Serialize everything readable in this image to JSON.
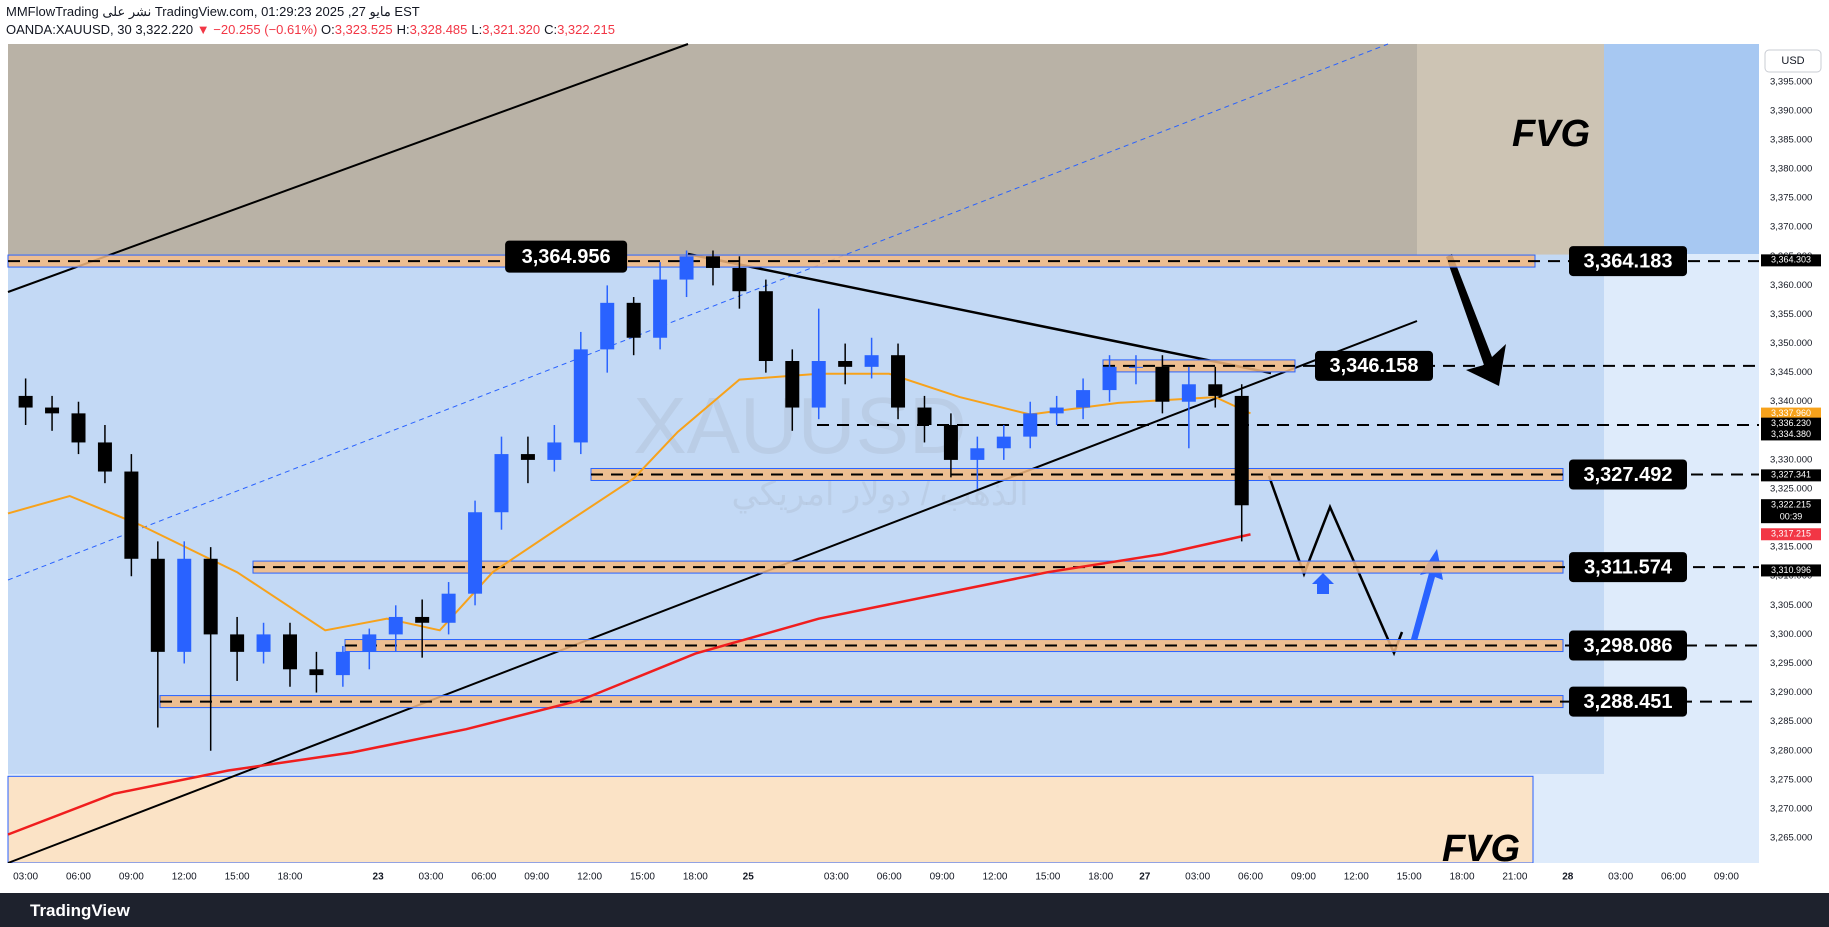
{
  "header": {
    "line1": "MMFlowTrading نشر على TradingView.com, مايو 27, 2025 01:29:23 EST",
    "symbol": "OANDA:XAUUSD, 30",
    "price": "3,322.220",
    "change": "▼ −20.255 (−0.61%)",
    "ohlc": [
      {
        "label": "O:",
        "value": "3,323.525"
      },
      {
        "label": "H:",
        "value": "3,328.485"
      },
      {
        "label": "L:",
        "value": "3,321.320"
      },
      {
        "label": "C:",
        "value": "3,322.215"
      }
    ]
  },
  "footer": {
    "brand": "TradingView"
  },
  "chart_data": {
    "type": "candlestick",
    "currency": "USD",
    "watermark": "XAUUSD",
    "watermark_sub": "الذهب / دولار امريكي",
    "countdown": "00:39",
    "up_color": "#2962ff",
    "down_color": "#000000",
    "xlim": [
      -2,
      196.7
    ],
    "ylim": [
      3260.7,
      3401.5
    ],
    "xticks": [
      {
        "value": 0,
        "label": "03:00"
      },
      {
        "value": 6,
        "label": "06:00"
      },
      {
        "value": 12,
        "label": "09:00"
      },
      {
        "value": 18,
        "label": "12:00"
      },
      {
        "value": 24,
        "label": "15:00"
      },
      {
        "value": 30,
        "label": "18:00"
      },
      {
        "value": 40,
        "label": "23"
      },
      {
        "value": 46,
        "label": "03:00"
      },
      {
        "value": 52,
        "label": "06:00"
      },
      {
        "value": 58,
        "label": "09:00"
      },
      {
        "value": 64,
        "label": "12:00"
      },
      {
        "value": 70,
        "label": "15:00"
      },
      {
        "value": 76,
        "label": "18:00"
      },
      {
        "value": 82,
        "label": "25"
      },
      {
        "value": 92,
        "label": "03:00"
      },
      {
        "value": 98,
        "label": "06:00"
      },
      {
        "value": 104,
        "label": "09:00"
      },
      {
        "value": 110,
        "label": "12:00"
      },
      {
        "value": 116,
        "label": "15:00"
      },
      {
        "value": 122,
        "label": "18:00"
      },
      {
        "value": 127,
        "label": "27"
      },
      {
        "value": 133,
        "label": "03:00"
      },
      {
        "value": 139,
        "label": "06:00"
      },
      {
        "value": 145,
        "label": "09:00"
      },
      {
        "value": 151,
        "label": "12:00"
      },
      {
        "value": 157,
        "label": "15:00"
      },
      {
        "value": 163,
        "label": "18:00"
      },
      {
        "value": 169,
        "label": "21:00"
      },
      {
        "value": 175,
        "label": "28"
      },
      {
        "value": 181,
        "label": "03:00"
      },
      {
        "value": 187,
        "label": "06:00"
      },
      {
        "value": 193,
        "label": "09:00"
      }
    ],
    "yticks": [
      {
        "value": 3265,
        "label": "3,265.000"
      },
      {
        "value": 3270,
        "label": "3,270.000"
      },
      {
        "value": 3275,
        "label": "3,275.000"
      },
      {
        "value": 3280,
        "label": "3,280.000"
      },
      {
        "value": 3285,
        "label": "3,285.000"
      },
      {
        "value": 3290,
        "label": "3,290.000"
      },
      {
        "value": 3295,
        "label": "3,295.000"
      },
      {
        "value": 3300,
        "label": "3,300.000"
      },
      {
        "value": 3305,
        "label": "3,305.000"
      },
      {
        "value": 3310,
        "label": "3,310.000"
      },
      {
        "value": 3315,
        "label": "3,315.000"
      },
      {
        "value": 3320,
        "label": "3,320.000"
      },
      {
        "value": 3325,
        "label": "3,325.000"
      },
      {
        "value": 3330,
        "label": "3,330.000"
      },
      {
        "value": 3335,
        "label": "3,335.000"
      },
      {
        "value": 3340,
        "label": "3,340.000"
      },
      {
        "value": 3345,
        "label": "3,345.000"
      },
      {
        "value": 3350,
        "label": "3,350.000"
      },
      {
        "value": 3355,
        "label": "3,355.000"
      },
      {
        "value": 3360,
        "label": "3,360.000"
      },
      {
        "value": 3365,
        "label": "3,365.000"
      },
      {
        "value": 3370,
        "label": "3,370.000"
      },
      {
        "value": 3375,
        "label": "3,375.000"
      },
      {
        "value": 3380,
        "label": "3,380.000"
      },
      {
        "value": 3385,
        "label": "3,385.000"
      },
      {
        "value": 3390,
        "label": "3,390.000"
      },
      {
        "value": 3395,
        "label": "3,395.000"
      }
    ],
    "candles": {
      "x": [
        0,
        3,
        6,
        9,
        12,
        15,
        18,
        21,
        24,
        27,
        30,
        33,
        36,
        39,
        42,
        45,
        48,
        51,
        54,
        57,
        60,
        63,
        66,
        69,
        72,
        75,
        78,
        81,
        84,
        87,
        90,
        93,
        96,
        99,
        102,
        105,
        108,
        111,
        114,
        117,
        120,
        123,
        126,
        129,
        132,
        135,
        138
      ],
      "open": [
        3341,
        3339,
        3338,
        3333,
        3328,
        3313,
        3297,
        3313,
        3300,
        3297,
        3300,
        3294,
        3293,
        3297,
        3300,
        3303,
        3302,
        3307,
        3321,
        3331,
        3330,
        3333,
        3349,
        3357,
        3351,
        3361,
        3365,
        3363,
        3359,
        3347,
        3339,
        3347,
        3346,
        3348,
        3339,
        3336,
        3330,
        3332,
        3334,
        3338,
        3339,
        3342,
        3346,
        3346,
        3340,
        3343,
        3341
      ],
      "high": [
        3344,
        3341,
        3340,
        3336,
        3331,
        3316,
        3316,
        3315,
        3303,
        3302,
        3302,
        3297,
        3298,
        3301,
        3305,
        3306,
        3309,
        3323,
        3334,
        3334,
        3336,
        3352,
        3360,
        3358,
        3364,
        3366,
        3366,
        3365,
        3361,
        3349,
        3356,
        3350,
        3351,
        3350,
        3341,
        3338,
        3334,
        3336,
        3340,
        3341,
        3344,
        3348,
        3348,
        3348,
        3346,
        3346,
        3343
      ],
      "low": [
        3336,
        3335,
        3331,
        3326,
        3310,
        3284,
        3295,
        3280,
        3292,
        3295,
        3291,
        3290,
        3291,
        3294,
        3297,
        3296,
        3300,
        3305,
        3318,
        3326,
        3328,
        3331,
        3345,
        3348,
        3349,
        3358,
        3360,
        3356,
        3345,
        3335,
        3337,
        3343,
        3344,
        3337,
        3333,
        3327,
        3325,
        3330,
        3332,
        3336,
        3337,
        3340,
        3343,
        3338,
        3332,
        3339,
        3316
      ],
      "close": [
        3339,
        3338,
        3333,
        3328,
        3313,
        3297,
        3313,
        3300,
        3297,
        3300,
        3294,
        3293,
        3297,
        3300,
        3303,
        3302,
        3307,
        3321,
        3331,
        3330,
        3333,
        3349,
        3357,
        3351,
        3361,
        3365,
        3363,
        3359,
        3347,
        3339,
        3347,
        3346,
        3348,
        3339,
        3336,
        3330,
        3332,
        3334,
        3338,
        3339,
        3342,
        3346,
        3346,
        3340,
        3343,
        3341,
        3322.2
      ]
    },
    "series": [
      {
        "color": "#f01e1e",
        "x": [
          -2,
          10,
          23,
          37,
          50,
          63,
          76,
          90,
          103,
          116,
          129,
          139
        ],
        "values": [
          3265.6,
          3272.6,
          3276.6,
          3279.7,
          3283.7,
          3288.7,
          3296.7,
          3302.7,
          3306.7,
          3310.7,
          3313.8,
          3317.2
        ]
      },
      {
        "color": "#f7a21b",
        "x": [
          -2,
          5,
          13,
          24,
          34,
          41,
          47,
          53,
          61,
          69,
          74,
          81,
          90,
          98,
          106,
          114,
          124,
          135,
          139
        ],
        "values": [
          3320.8,
          3323.8,
          3318.8,
          3310.7,
          3300.7,
          3302.7,
          3300.7,
          3310.7,
          3318.8,
          3326.8,
          3334.8,
          3343.8,
          3344.8,
          3344.8,
          3340.8,
          3337.8,
          3339.8,
          3340.8,
          3338
        ]
      }
    ],
    "zones": [
      {
        "label": "FVG",
        "ylim": [
          3365.3,
          3401.5
        ]
      },
      {
        "label": "FVG",
        "ylim": [
          3260.7,
          3275.6
        ]
      }
    ],
    "peak": {
      "x": 72,
      "value": 3364.956,
      "label": "3,364.956"
    },
    "levels": {
      "values": [
        3364.183,
        3346.158,
        3327.492,
        3311.574,
        3298.086,
        3288.451
      ],
      "value_labels": [
        "3,364.183",
        "3,346.158",
        "3,327.492",
        "3,311.574",
        "3,298.086",
        "3,288.451"
      ]
    },
    "price_labels": {
      "values": [
        3364.303,
        3337.96,
        3336.23,
        3334.38,
        3327.341,
        3322.215,
        3317.215,
        3310.996
      ],
      "value_labels": [
        "3,364.303",
        "3,337.960",
        "3,336.230",
        "3,334.380",
        "3,327.341",
        "3,322.215",
        "3,317.215",
        "3,310.996"
      ],
      "colors": [
        "#000000",
        "#f7a21b",
        "#000000",
        "#000000",
        "#000000",
        "#000000",
        "#f23645",
        "#000000"
      ]
    }
  }
}
